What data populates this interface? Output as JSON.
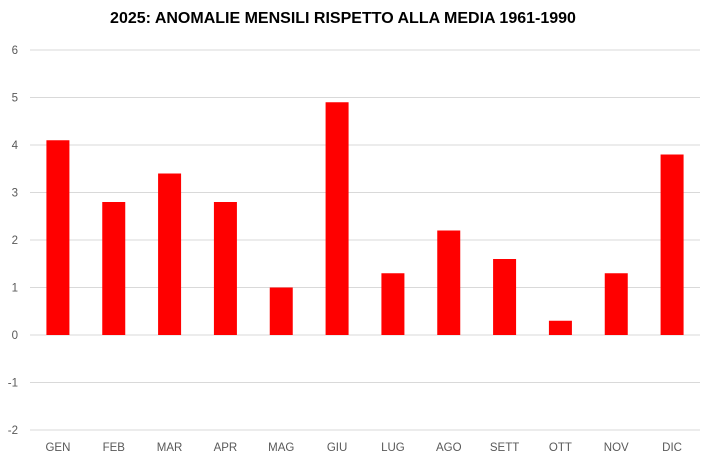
{
  "chart_data": {
    "type": "bar",
    "title": "2025: ANOMALIE MENSILI RISPETTO ALLA MEDIA 1961-1990",
    "categories": [
      "GEN",
      "FEB",
      "MAR",
      "APR",
      "MAG",
      "GIU",
      "LUG",
      "AGO",
      "SETT",
      "OTT",
      "NOV",
      "DIC"
    ],
    "values": [
      4.1,
      2.8,
      3.4,
      2.8,
      1.0,
      4.9,
      1.3,
      2.2,
      1.6,
      0.3,
      1.3,
      3.8
    ],
    "yticks": [
      "6",
      "5",
      "4",
      "3",
      "2",
      "1",
      "0",
      "-1",
      "-2"
    ],
    "ylim": [
      -2,
      6
    ],
    "grid": true,
    "bar_color": "#ff0000",
    "grid_color": "#d9d9d9",
    "xlabel": "",
    "ylabel": ""
  }
}
